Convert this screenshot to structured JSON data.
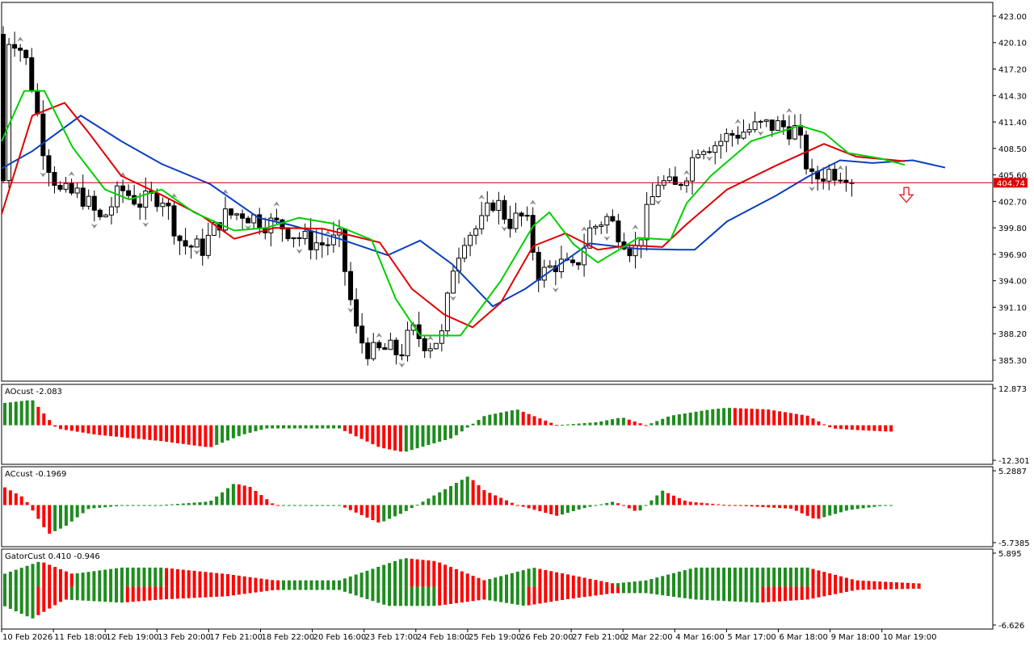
{
  "chart_data": [
    {
      "type": "candlestick",
      "pane": "price",
      "ylim": [
        383.0,
        424.5
      ],
      "y_ticks": [
        "423.00",
        "420.10",
        "417.20",
        "414.30",
        "411.40",
        "408.50",
        "405.60",
        "402.70",
        "399.80",
        "396.90",
        "394.00",
        "391.10",
        "388.20",
        "385.30"
      ],
      "current_price": "404.74",
      "current_price_value": 404.74,
      "colors": {
        "candle_up": "#ffffff",
        "candle_down": "#000000",
        "candle_outline": "#000000",
        "price_line": "#b00000",
        "price_label_bg": "#e00000",
        "sell_arrow": "#e03030",
        "fractal": "#8c8c8c"
      },
      "series": [
        {
          "name": "blue",
          "color": "#0b3fbf",
          "points": [
            [
              2,
              406.3
            ],
            [
              40,
              408.2
            ],
            [
              100,
              412.1
            ],
            [
              150,
              409.3
            ],
            [
              200,
              406.8
            ],
            [
              260,
              404.6
            ],
            [
              320,
              400.9
            ],
            [
              360,
              400.1
            ],
            [
              420,
              398.6
            ],
            [
              480,
              396.8
            ],
            [
              520,
              398.4
            ],
            [
              560,
              395.8
            ],
            [
              610,
              391.2
            ],
            [
              650,
              393.1
            ],
            [
              690,
              395.6
            ],
            [
              730,
              398.1
            ],
            [
              790,
              397.5
            ],
            [
              840,
              397.4
            ],
            [
              860,
              397.4
            ],
            [
              900,
              400.5
            ],
            [
              960,
              403.3
            ],
            [
              1000,
              405.4
            ],
            [
              1040,
              407.2
            ],
            [
              1080,
              406.9
            ],
            [
              1130,
              407.2
            ],
            [
              1170,
              406.4
            ]
          ]
        },
        {
          "name": "red",
          "color": "#e00000",
          "points": [
            [
              2,
              401.3
            ],
            [
              40,
              412.1
            ],
            [
              80,
              413.5
            ],
            [
              110,
              410.2
            ],
            [
              150,
              405.5
            ],
            [
              200,
              403.4
            ],
            [
              250,
              401.1
            ],
            [
              290,
              398.6
            ],
            [
              340,
              399.8
            ],
            [
              400,
              399.7
            ],
            [
              470,
              398.2
            ],
            [
              510,
              393.1
            ],
            [
              550,
              390.3
            ],
            [
              585,
              388.9
            ],
            [
              620,
              391.6
            ],
            [
              660,
              397.8
            ],
            [
              700,
              399.2
            ],
            [
              740,
              397.4
            ],
            [
              780,
              397.9
            ],
            [
              820,
              397.7
            ],
            [
              850,
              400.2
            ],
            [
              900,
              404.0
            ],
            [
              960,
              406.6
            ],
            [
              1020,
              409.0
            ],
            [
              1060,
              407.6
            ],
            [
              1120,
              407.1
            ]
          ]
        },
        {
          "name": "green",
          "color": "#00d000",
          "points": [
            [
              2,
              409.3
            ],
            [
              30,
              414.8
            ],
            [
              55,
              414.8
            ],
            [
              90,
              408.6
            ],
            [
              130,
              404.0
            ],
            [
              160,
              402.9
            ],
            [
              200,
              404.0
            ],
            [
              240,
              401.5
            ],
            [
              290,
              399.5
            ],
            [
              330,
              399.8
            ],
            [
              370,
              400.9
            ],
            [
              410,
              400.3
            ],
            [
              460,
              398.5
            ],
            [
              490,
              392.0
            ],
            [
              520,
              388.0
            ],
            [
              570,
              388.0
            ],
            [
              620,
              394.0
            ],
            [
              660,
              400.0
            ],
            [
              680,
              401.5
            ],
            [
              710,
              398.0
            ],
            [
              740,
              396.0
            ],
            [
              770,
              397.6
            ],
            [
              790,
              398.7
            ],
            [
              830,
              398.5
            ],
            [
              850,
              402.5
            ],
            [
              880,
              405.5
            ],
            [
              930,
              409.3
            ],
            [
              990,
              411.0
            ],
            [
              1020,
              410.2
            ],
            [
              1050,
              408.0
            ],
            [
              1090,
              407.4
            ],
            [
              1120,
              406.7
            ]
          ]
        }
      ]
    },
    {
      "type": "bar",
      "pane": "AOcust",
      "label": "AOcust -2.083",
      "ylim": [
        -12.301,
        12.873
      ],
      "y_ticks": [
        "12.873",
        "-12.301"
      ]
    },
    {
      "type": "bar",
      "pane": "ACcust",
      "label": "ACcust -0.1969",
      "ylim": [
        -5.7385,
        5.2887
      ],
      "y_ticks": [
        "5.2887",
        "-5.7385"
      ]
    },
    {
      "type": "bar",
      "pane": "GatorCust",
      "label": "GatorCust 0.410 -0.946",
      "ylim": [
        -6.626,
        5.895
      ],
      "y_ticks": [
        "5.895",
        "-6.626"
      ]
    }
  ],
  "x_axis": {
    "labels": [
      "10 Feb 2026",
      "11 Feb 18:00",
      "12 Feb 19:00",
      "13 Feb 20:00",
      "17 Feb 21:00",
      "18 Feb 22:00",
      "20 Feb 16:00",
      "23 Feb 17:00",
      "24 Feb 18:00",
      "25 Feb 19:00",
      "26 Feb 20:00",
      "27 Feb 21:00",
      "2 Mar 22:00",
      "4 Mar 16:00",
      "5 Mar 17:00",
      "6 Mar 18:00",
      "9 Mar 18:00",
      "10 Mar 19:00"
    ]
  },
  "colors": {
    "bar_up": "#1e8c1e",
    "bar_down": "#ff0000",
    "axis": "#000000",
    "text": "#000000"
  }
}
